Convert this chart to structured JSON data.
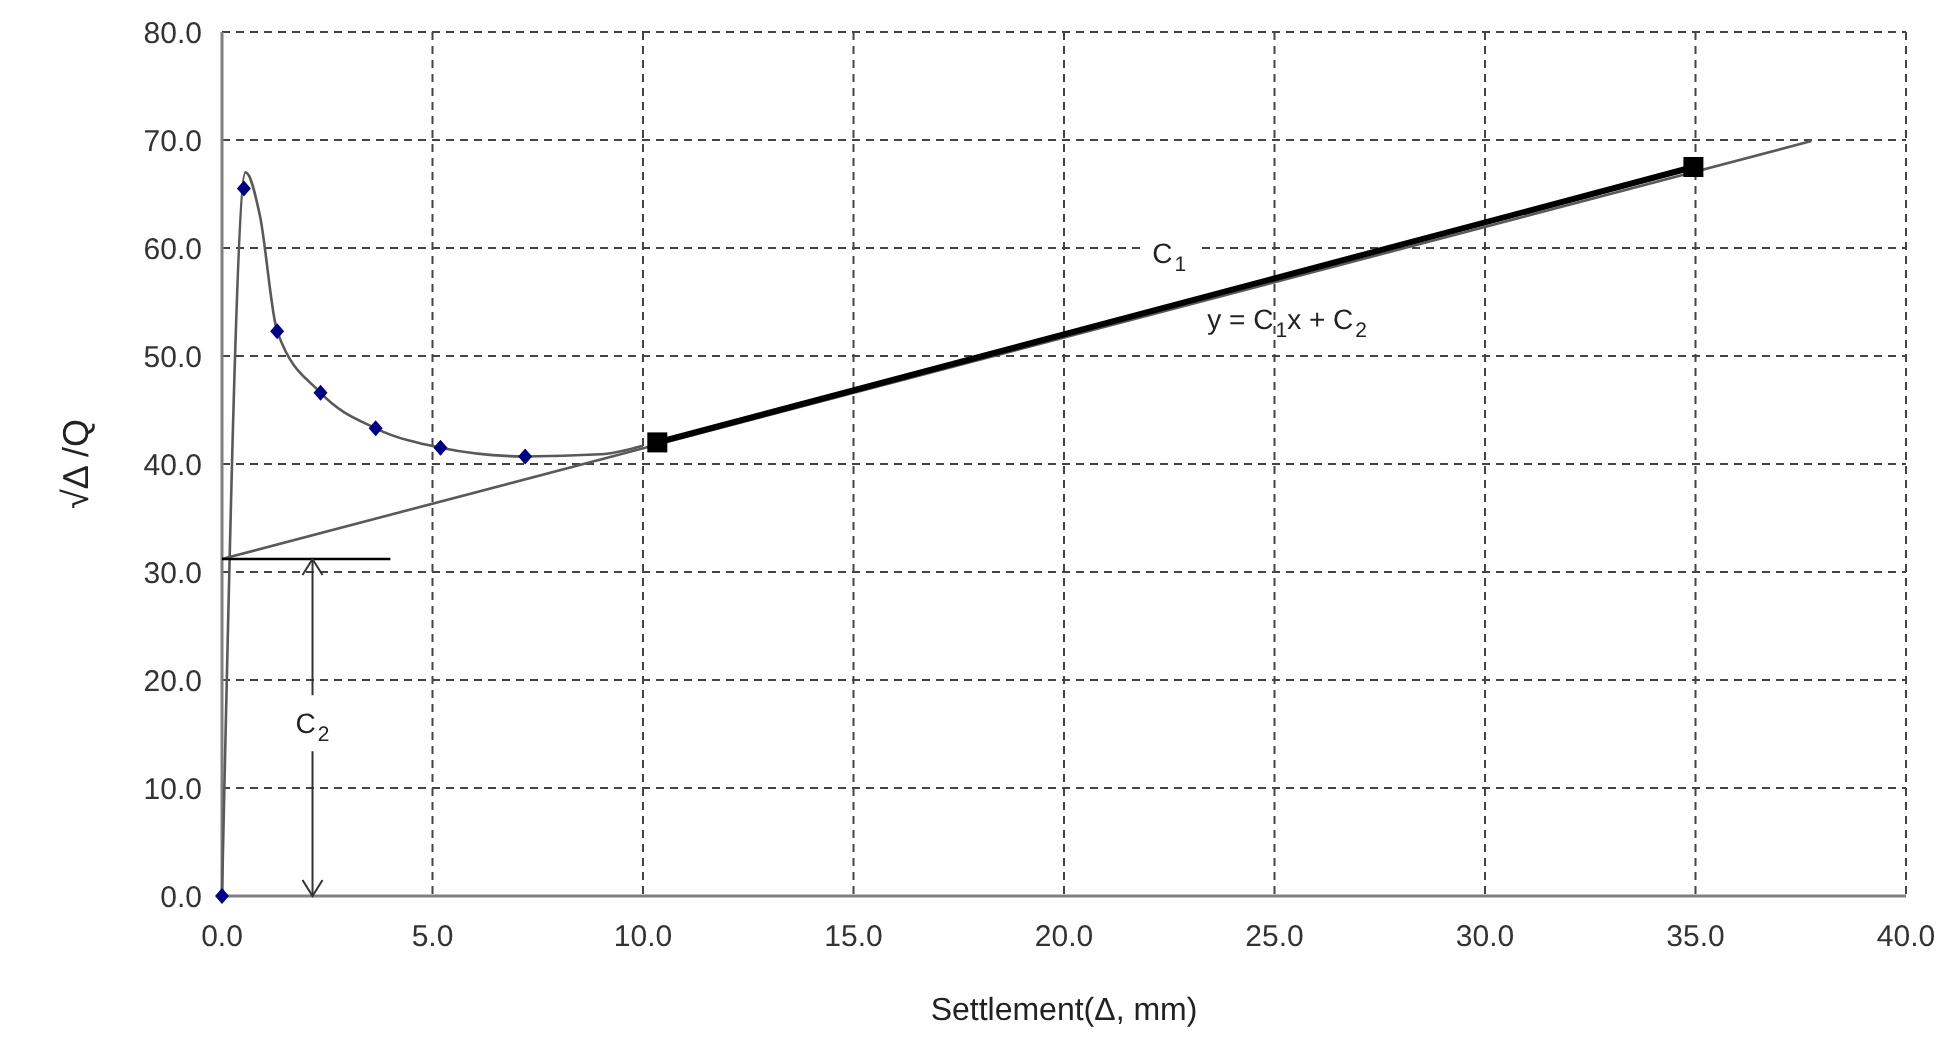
{
  "chart_data": {
    "type": "line",
    "xlabel": "Settlement(Δ, mm)",
    "ylabel": "√Δ /Q",
    "xlim": [
      0,
      40
    ],
    "ylim": [
      0,
      80
    ],
    "xticks": [
      {
        "value": 0,
        "label": "0.0"
      },
      {
        "value": 5,
        "label": "5.0"
      },
      {
        "value": 10,
        "label": "10.0"
      },
      {
        "value": 15,
        "label": "15.0"
      },
      {
        "value": 20,
        "label": "20.0"
      },
      {
        "value": 25,
        "label": "25.0"
      },
      {
        "value": 30,
        "label": "30.0"
      },
      {
        "value": 35,
        "label": "35.0"
      },
      {
        "value": 40,
        "label": "40.0"
      }
    ],
    "yticks": [
      {
        "value": 0,
        "label": "0.0"
      },
      {
        "value": 10,
        "label": "10.0"
      },
      {
        "value": 20,
        "label": "20.0"
      },
      {
        "value": 30,
        "label": "30.0"
      },
      {
        "value": 40,
        "label": "40.0"
      },
      {
        "value": 50,
        "label": "50.0"
      },
      {
        "value": 60,
        "label": "60.0"
      },
      {
        "value": 70,
        "label": "70.0"
      },
      {
        "value": 80,
        "label": "80.0"
      }
    ],
    "grid": true,
    "series": [
      {
        "color": "#595959",
        "marker": "none",
        "x": [
          0,
          0.56,
          0.9,
          1.31,
          2.34,
          3.65,
          5.19,
          7.2,
          9,
          10
        ],
        "values": [
          0,
          67,
          63,
          52.3,
          46.6,
          43.3,
          41.5,
          40.7,
          40.9,
          41.7
        ]
      },
      {
        "color": "#595959",
        "marker": "none",
        "x": [
          0,
          37.75
        ],
        "values": [
          31.2,
          69.9
        ]
      },
      {
        "type": "line",
        "color": "#000000",
        "marker": "none",
        "x": [
          0,
          4
        ],
        "values": [
          31.2,
          31.2
        ]
      },
      {
        "type": "scatter",
        "color": "#000080",
        "marker": "diamond",
        "x": [
          0,
          0.52,
          1.31,
          2.34,
          3.65,
          5.19,
          7.2
        ],
        "values": [
          0,
          65.5,
          52.3,
          46.6,
          43.3,
          41.5,
          40.7
        ]
      },
      {
        "type": "line",
        "color": "#000000",
        "marker": "square",
        "x": [
          10.34,
          34.95
        ],
        "values": [
          42,
          67.5
        ]
      }
    ],
    "annotations": [
      {
        "text": "C$_{2}$",
        "x": 2.15,
        "y": 16
      },
      {
        "text": "C$_{1}$",
        "x": 22.5,
        "y": 59.5
      },
      "y = C$_{1}$x + C$_{2}$"
    ]
  }
}
